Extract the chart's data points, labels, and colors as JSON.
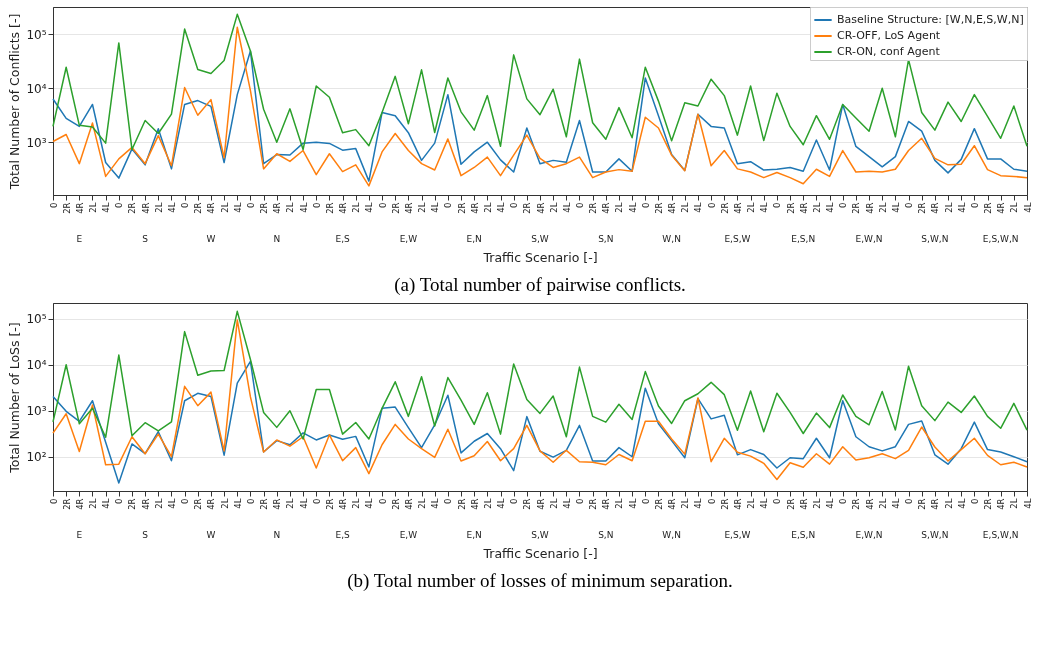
{
  "chart_data": [
    {
      "type": "line",
      "title": "(a) Total number of pairwise conflicts.",
      "xlabel": "Traffic Scenario [-]",
      "ylabel": "Total Number of Conflicts [-]",
      "log": true,
      "grid": "y",
      "legend": "top right",
      "categories": [
        "0",
        "2R",
        "4R",
        "2L",
        "4L",
        "0",
        "2R",
        "4R",
        "2L",
        "4L",
        "0",
        "2R",
        "4R",
        "2L",
        "4L",
        "0",
        "2R",
        "4R",
        "2L",
        "4L",
        "0",
        "2R",
        "4R",
        "2L",
        "4L",
        "0",
        "2R",
        "4R",
        "2L",
        "4L",
        "0",
        "2R",
        "4R",
        "2L",
        "4L",
        "0",
        "2R",
        "4R",
        "2L",
        "4L",
        "0",
        "2R",
        "4R",
        "2L",
        "4L",
        "0",
        "2R",
        "4R",
        "2L",
        "4L",
        "0",
        "2R",
        "4R",
        "2L",
        "4L",
        "0",
        "2R",
        "4R",
        "2L",
        "4L",
        "0",
        "2R",
        "4R",
        "2L",
        "4L",
        "0",
        "2R",
        "4R",
        "2L",
        "4L",
        "0",
        "2R",
        "4R",
        "2L",
        "4L"
      ],
      "annotations": [
        "E",
        "S",
        "W",
        "N",
        "E,S",
        "E,W",
        "E,N",
        "S,W",
        "S,N",
        "W,N",
        "E,S,W",
        "E,S,N",
        "E,W,N",
        "S,W,N",
        "E,S,W,N"
      ],
      "ylim": [
        105,
        320000
      ],
      "yticks": [
        {
          "value": 1000,
          "label": "10³"
        },
        {
          "value": 10000,
          "label": "10⁴"
        },
        {
          "value": 100000,
          "label": "10⁵"
        }
      ],
      "series": [
        {
          "name": "Baseline Structure: [W,N,E,S,W,N]",
          "color": "#1f77b4",
          "values": [
            6300,
            2770,
            1960,
            5000,
            420,
            216,
            750,
            380,
            1780,
            320,
            5000,
            5900,
            4600,
            420,
            7600,
            49000,
            400,
            590,
            580,
            960,
            1000,
            950,
            710,
            760,
            190,
            3550,
            3100,
            1500,
            460,
            960,
            7600,
            390,
            660,
            1000,
            470,
            280,
            1830,
            400,
            460,
            425,
            2520,
            280,
            280,
            490,
            290,
            15500,
            3100,
            590,
            300,
            3300,
            1960,
            1830,
            400,
            435,
            305,
            315,
            340,
            290,
            1100,
            305,
            5000,
            835,
            540,
            350,
            540,
            2420,
            1600,
            460,
            270,
            480,
            1780,
            490,
            490,
            315,
            290
          ]
        },
        {
          "name": "CR-OFF, LoS Agent",
          "color": "#ff7f0e",
          "values": [
            1030,
            1390,
            400,
            2260,
            232,
            490,
            800,
            400,
            1320,
            365,
            10300,
            3150,
            6150,
            515,
            135000,
            9000,
            320,
            610,
            440,
            700,
            250,
            610,
            285,
            380,
            155,
            660,
            1450,
            700,
            400,
            305,
            1150,
            240,
            340,
            530,
            240,
            575,
            1350,
            500,
            340,
            400,
            530,
            220,
            280,
            310,
            290,
            2900,
            1830,
            575,
            295,
            3300,
            365,
            700,
            320,
            280,
            220,
            275,
            220,
            170,
            315,
            232,
            700,
            280,
            290,
            280,
            315,
            700,
            1180,
            500,
            380,
            390,
            860,
            310,
            240,
            232,
            220
          ]
        },
        {
          "name": "CR-ON, conf Agent",
          "color": "#2ca02c",
          "values": [
            1960,
            24500,
            2050,
            1910,
            960,
            69000,
            730,
            2520,
            1450,
            3300,
            125000,
            22300,
            18800,
            32600,
            234000,
            49000,
            4080,
            1000,
            4150,
            730,
            11000,
            6800,
            1490,
            1710,
            860,
            3550,
            16600,
            2190,
            21900,
            1510,
            15500,
            3650,
            1670,
            7300,
            840,
            41500,
            6350,
            3230,
            9600,
            1260,
            34600,
            2290,
            1130,
            4370,
            1210,
            24500,
            5770,
            1060,
            5380,
            4690,
            14700,
            7300,
            1350,
            11000,
            1070,
            8100,
            1960,
            895,
            3100,
            1130,
            5000,
            2810,
            1600,
            10000,
            1260,
            33800,
            3550,
            1670,
            5520,
            2420,
            7600,
            3010,
            1180,
            4690,
            840
          ]
        }
      ]
    },
    {
      "type": "line",
      "title": "(b) Total number of losses of minimum separation.",
      "xlabel": "Traffic Scenario [-]",
      "ylabel": "Total Number of LoSs [-]",
      "log": true,
      "grid": "y",
      "legend": "top right",
      "categories": [
        "0",
        "2R",
        "4R",
        "2L",
        "4L",
        "0",
        "2R",
        "4R",
        "2L",
        "4L",
        "0",
        "2R",
        "4R",
        "2L",
        "4L",
        "0",
        "2R",
        "4R",
        "2L",
        "4L",
        "0",
        "2R",
        "4R",
        "2L",
        "4L",
        "0",
        "2R",
        "4R",
        "2L",
        "4L",
        "0",
        "2R",
        "4R",
        "2L",
        "4L",
        "0",
        "2R",
        "4R",
        "2L",
        "4L",
        "0",
        "2R",
        "4R",
        "2L",
        "4L",
        "0",
        "2R",
        "4R",
        "2L",
        "4L",
        "0",
        "2R",
        "4R",
        "2L",
        "4L",
        "0",
        "2R",
        "4R",
        "2L",
        "4L",
        "0",
        "2R",
        "4R",
        "2L",
        "4L",
        "0",
        "2R",
        "4R",
        "2L",
        "4L",
        "0",
        "2R",
        "4R",
        "2L",
        "4L"
      ],
      "annotations": [
        "E",
        "S",
        "W",
        "N",
        "E,S",
        "E,W",
        "E,N",
        "S,W",
        "S,N",
        "W,N",
        "E,S,W",
        "E,S,N",
        "E,W,N",
        "S,W,N",
        "E,S,W,N"
      ],
      "ylim": [
        18,
        220000
      ],
      "yticks": [
        {
          "value": 100,
          "label": "10²"
        },
        {
          "value": 1000,
          "label": "10³"
        },
        {
          "value": 10000,
          "label": "10⁴"
        },
        {
          "value": 100000,
          "label": "10⁵"
        }
      ],
      "series": [
        {
          "name": "Baseline Structure: [W,N,E,S,W,N]",
          "color": "#1f77b4",
          "values": [
            2050,
            970,
            590,
            1650,
            207,
            27,
            190,
            117,
            350,
            82,
            1650,
            2390,
            2050,
            108,
            4000,
            11800,
            127,
            224,
            182,
            330,
            232,
            296,
            240,
            277,
            60,
            1130,
            1200,
            430,
            158,
            490,
            2170,
            121,
            217,
            320,
            150,
            50,
            745,
            132,
            98,
            138,
            480,
            81,
            81,
            158,
            100,
            3090,
            520,
            224,
            95,
            1840,
            665,
            795,
            110,
            143,
            112,
            57,
            95,
            91,
            252,
            95,
            1650,
            272,
            165,
            134,
            165,
            505,
            600,
            110,
            69,
            150,
            565,
            143,
            127,
            100,
            78
          ]
        },
        {
          "name": "CR-OFF, LoS Agent",
          "color": "#ff7f0e",
          "values": [
            327,
            860,
            130,
            1330,
            67,
            69,
            272,
            116,
            310,
            100,
            3400,
            1290,
            2540,
            134,
            94000,
            2000,
            127,
            232,
            170,
            272,
            57,
            300,
            82,
            158,
            43,
            182,
            505,
            243,
            150,
            97,
            395,
            81,
            105,
            214,
            82,
            150,
            480,
            134,
            76,
            138,
            78,
            76,
            67,
            112,
            82,
            590,
            590,
            243,
            114,
            1900,
            78,
            252,
            125,
            103,
            72,
            32,
            74,
            59,
            116,
            69,
            165,
            85,
            95,
            116,
            91,
            138,
            443,
            163,
            81,
            143,
            252,
            107,
            67,
            76,
            60
          ]
        },
        {
          "name": "CR-ON, conf Agent",
          "color": "#2ca02c",
          "values": [
            575,
            10000,
            520,
            1130,
            265,
            16200,
            287,
            550,
            365,
            575,
            52500,
            5900,
            7300,
            7500,
            145000,
            13000,
            920,
            435,
            1000,
            243,
            2900,
            2900,
            310,
            555,
            243,
            1130,
            4260,
            755,
            5500,
            465,
            5260,
            1700,
            505,
            2470,
            310,
            10400,
            1750,
            875,
            2090,
            272,
            8900,
            755,
            565,
            1380,
            645,
            7100,
            1270,
            530,
            1650,
            2340,
            4150,
            2240,
            378,
            2700,
            350,
            2400,
            920,
            320,
            890,
            430,
            2200,
            755,
            495,
            2620,
            383,
            9300,
            1290,
            610,
            1540,
            920,
            2090,
            755,
            415,
            1450,
            378
          ]
        }
      ]
    }
  ]
}
